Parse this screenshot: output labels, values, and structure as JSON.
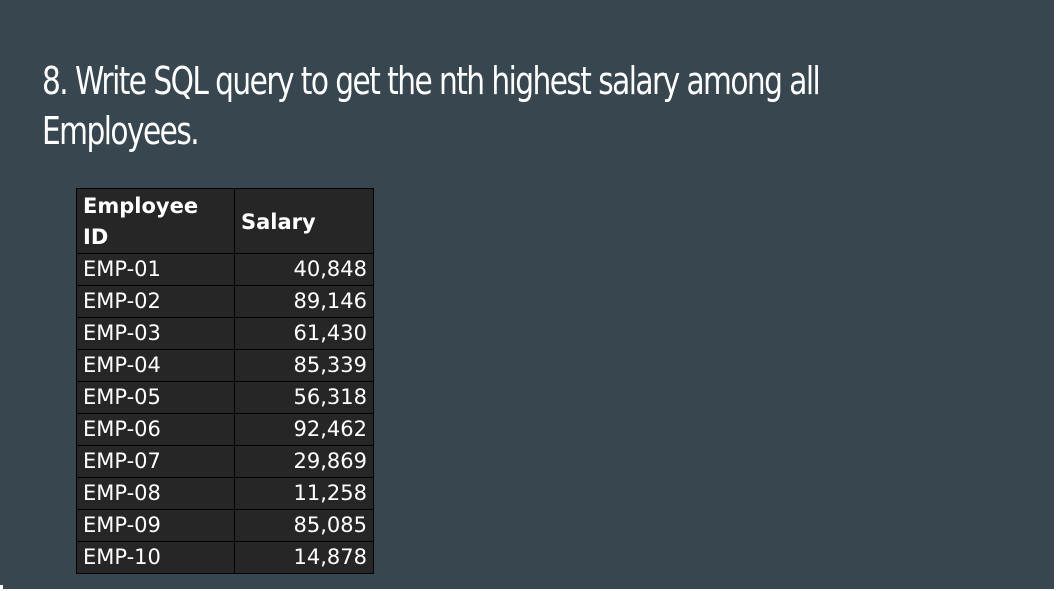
{
  "slide": {
    "title_line1": "8. Write SQL query to get the nth highest salary among all",
    "title_line2": "Employees."
  },
  "table": {
    "headers": [
      "Employee ID",
      "Salary"
    ],
    "rows": [
      {
        "id": "EMP-01",
        "salary": "40,848"
      },
      {
        "id": "EMP-02",
        "salary": "89,146"
      },
      {
        "id": "EMP-03",
        "salary": "61,430"
      },
      {
        "id": "EMP-04",
        "salary": "85,339"
      },
      {
        "id": "EMP-05",
        "salary": "56,318"
      },
      {
        "id": "EMP-06",
        "salary": "92,462"
      },
      {
        "id": "EMP-07",
        "salary": "29,869"
      },
      {
        "id": "EMP-08",
        "salary": "11,258"
      },
      {
        "id": "EMP-09",
        "salary": "85,085"
      },
      {
        "id": "EMP-10",
        "salary": "14,878"
      }
    ]
  },
  "colors": {
    "slide_background": "#37464f",
    "table_background": "#262626",
    "text": "#ffffff"
  }
}
